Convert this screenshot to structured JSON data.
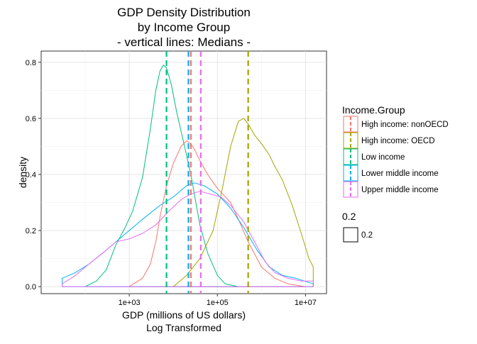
{
  "chart_data": {
    "type": "density",
    "title_lines": [
      "GDP Density Distribution",
      "by Income Group",
      "- vertical lines: Medians -"
    ],
    "xlabel_lines": [
      "GDP (millions of US dollars)",
      "Log Transformed"
    ],
    "ylabel": "density",
    "x_scale": "log10",
    "xlim": [
      10,
      30000000
    ],
    "ylim": [
      -0.025,
      0.84
    ],
    "x_ticks": [
      {
        "value": 1000,
        "label": "1e+03"
      },
      {
        "value": 100000,
        "label": "1e+05"
      },
      {
        "value": 10000000,
        "label": "1e+07"
      }
    ],
    "y_ticks": [
      {
        "value": 0.0,
        "label": "0.0"
      },
      {
        "value": 0.2,
        "label": "0.2"
      },
      {
        "value": 0.4,
        "label": "0.4"
      },
      {
        "value": 0.6,
        "label": "0.6"
      },
      {
        "value": 0.8,
        "label": "0.8"
      }
    ],
    "grid": true,
    "legend_position": "right",
    "legend_title": "Income.Group",
    "size_legend": {
      "title": "0.2",
      "label": "0.2"
    },
    "series": [
      {
        "name": "High income: nonOECD",
        "color": "#F8766D",
        "median": 25000,
        "points": [
          [
            1000,
            0.0
          ],
          [
            2000,
            0.03
          ],
          [
            3000,
            0.08
          ],
          [
            4000,
            0.16
          ],
          [
            5000,
            0.25
          ],
          [
            7000,
            0.36
          ],
          [
            10000,
            0.44
          ],
          [
            15000,
            0.5
          ],
          [
            20000,
            0.52
          ],
          [
            25000,
            0.51
          ],
          [
            30000,
            0.49
          ],
          [
            40000,
            0.45
          ],
          [
            60000,
            0.4
          ],
          [
            100000,
            0.35
          ],
          [
            200000,
            0.3
          ],
          [
            300000,
            0.24
          ],
          [
            500000,
            0.16
          ],
          [
            1000000,
            0.07
          ],
          [
            2000000,
            0.03
          ],
          [
            4000000,
            0.01
          ],
          [
            10000000,
            0.0
          ]
        ]
      },
      {
        "name": "High income: OECD",
        "color": "#A3A500",
        "median": 500000,
        "points": [
          [
            10000,
            0.0
          ],
          [
            20000,
            0.04
          ],
          [
            40000,
            0.1
          ],
          [
            80000,
            0.2
          ],
          [
            130000,
            0.35
          ],
          [
            200000,
            0.5
          ],
          [
            300000,
            0.59
          ],
          [
            400000,
            0.6
          ],
          [
            500000,
            0.58
          ],
          [
            700000,
            0.54
          ],
          [
            1000000,
            0.51
          ],
          [
            1500000,
            0.47
          ],
          [
            2000000,
            0.43
          ],
          [
            3000000,
            0.38
          ],
          [
            5000000,
            0.29
          ],
          [
            8000000,
            0.19
          ],
          [
            12000000,
            0.1
          ],
          [
            15000000,
            0.07
          ],
          [
            15000000,
            0.0
          ]
        ]
      },
      {
        "name": "Low income",
        "color": "#00BF7D",
        "median": 7000,
        "points": [
          [
            100,
            0.0
          ],
          [
            180,
            0.02
          ],
          [
            300,
            0.06
          ],
          [
            500,
            0.15
          ],
          [
            800,
            0.21
          ],
          [
            1200,
            0.27
          ],
          [
            2000,
            0.39
          ],
          [
            3000,
            0.56
          ],
          [
            4000,
            0.7
          ],
          [
            5000,
            0.77
          ],
          [
            6000,
            0.79
          ],
          [
            7000,
            0.78
          ],
          [
            9000,
            0.72
          ],
          [
            12000,
            0.62
          ],
          [
            18000,
            0.5
          ],
          [
            25000,
            0.4
          ],
          [
            40000,
            0.22
          ],
          [
            60000,
            0.12
          ],
          [
            100000,
            0.04
          ],
          [
            150000,
            0.01
          ],
          [
            300000,
            0.0
          ]
        ]
      },
      {
        "name": "Lower middle income",
        "color": "#00B0F6",
        "median": 22000,
        "points": [
          [
            30,
            0.03
          ],
          [
            60,
            0.05
          ],
          [
            120,
            0.08
          ],
          [
            250,
            0.12
          ],
          [
            500,
            0.16
          ],
          [
            1000,
            0.2
          ],
          [
            2000,
            0.24
          ],
          [
            5000,
            0.29
          ],
          [
            10000,
            0.32
          ],
          [
            20000,
            0.36
          ],
          [
            30000,
            0.37
          ],
          [
            50000,
            0.36
          ],
          [
            100000,
            0.33
          ],
          [
            200000,
            0.28
          ],
          [
            400000,
            0.21
          ],
          [
            800000,
            0.13
          ],
          [
            1500000,
            0.07
          ],
          [
            3000000,
            0.04
          ],
          [
            6000000,
            0.03
          ],
          [
            15000000,
            0.01
          ]
        ]
      },
      {
        "name": "Upper middle income",
        "color": "#E76BF3",
        "median": 42000,
        "points": [
          [
            30,
            0.01
          ],
          [
            60,
            0.04
          ],
          [
            120,
            0.08
          ],
          [
            250,
            0.12
          ],
          [
            500,
            0.16
          ],
          [
            1000,
            0.17
          ],
          [
            2000,
            0.19
          ],
          [
            4000,
            0.22
          ],
          [
            8000,
            0.27
          ],
          [
            15000,
            0.31
          ],
          [
            25000,
            0.33
          ],
          [
            40000,
            0.34
          ],
          [
            70000,
            0.33
          ],
          [
            120000,
            0.32
          ],
          [
            200000,
            0.29
          ],
          [
            400000,
            0.23
          ],
          [
            700000,
            0.16
          ],
          [
            1200000,
            0.09
          ],
          [
            2000000,
            0.05
          ],
          [
            4000000,
            0.03
          ],
          [
            8000000,
            0.02
          ],
          [
            15000000,
            0.02
          ]
        ]
      }
    ]
  }
}
